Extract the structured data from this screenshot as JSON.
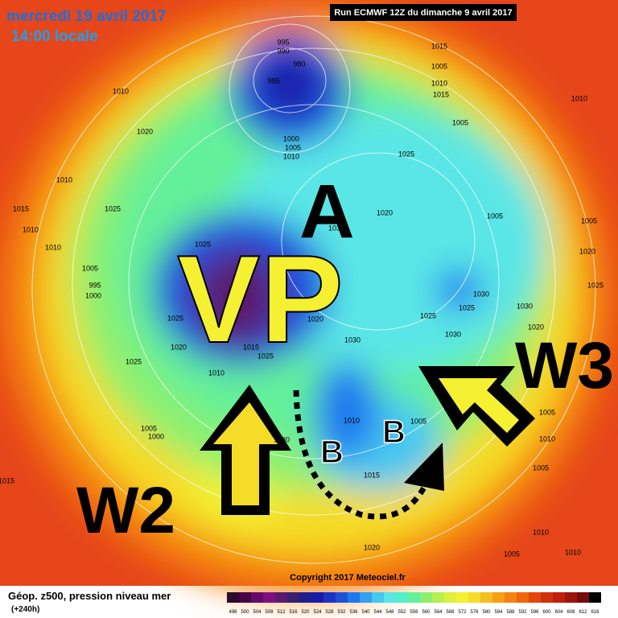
{
  "header": {
    "date": "mercredi 19 avril 2017",
    "time": "14:00 locale",
    "run": "Run ECMWF 12Z du dimanche 9 avril 2017"
  },
  "annotations": {
    "vp": "VP",
    "a": "A",
    "b1": "B",
    "b2": "B",
    "w2": "W2",
    "w3": "W3"
  },
  "pressure_labels": [
    "995",
    "990",
    "980",
    "985",
    "1015",
    "1005",
    "1010",
    "1015",
    "1010",
    "1020",
    "1000",
    "1005",
    "1010",
    "1005",
    "1025",
    "1010",
    "1015",
    "1025",
    "1010",
    "1010",
    "1005",
    "995",
    "1000",
    "1025",
    "1020",
    "1030",
    "1005",
    "1010",
    "1005",
    "1030",
    "1025",
    "1030",
    "1020",
    "1025",
    "1030",
    "1030",
    "1020",
    "1025",
    "1020",
    "1025",
    "1015",
    "1025",
    "1010",
    "1005",
    "1000",
    "1030",
    "1010",
    "1005",
    "1015",
    "1020",
    "1005",
    "1010",
    "1005",
    "1010",
    "1005",
    "1010",
    "1015",
    "1020",
    "1025"
  ],
  "copyright": "Copyright 2017 Meteociel.fr",
  "legend": {
    "title": "Géop. z500, pression niveau mer",
    "lead": "(+240h)",
    "labels": [
      "496",
      "500",
      "504",
      "508",
      "512",
      "516",
      "520",
      "524",
      "528",
      "532",
      "536",
      "540",
      "544",
      "548",
      "552",
      "556",
      "560",
      "564",
      "568",
      "572",
      "576",
      "580",
      "584",
      "588",
      "592",
      "596",
      "600",
      "604",
      "608",
      "612",
      "616"
    ],
    "colors": [
      "#2b0a2b",
      "#46004a",
      "#650a6b",
      "#80107e",
      "#5a1a6e",
      "#3a1e6e",
      "#1e1e8c",
      "#1a1aa8",
      "#1e32c8",
      "#1e50dc",
      "#1e78f0",
      "#32a0f0",
      "#46c8f0",
      "#5ae6e6",
      "#50f0c8",
      "#64f09a",
      "#8cf06e",
      "#b4f050",
      "#dcf03c",
      "#f5f032",
      "#f5dc28",
      "#f5be1e",
      "#f5a014",
      "#f5820f",
      "#f0640a",
      "#e6460a",
      "#d2320a",
      "#be1e0a",
      "#a0140a",
      "#780a0a",
      "#000000"
    ]
  }
}
